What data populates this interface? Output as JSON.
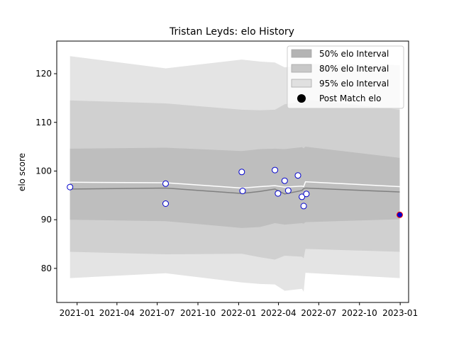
{
  "chart_data": {
    "type": "scatter",
    "title": "Tristan Leyds: elo History",
    "xlabel": "",
    "ylabel": "elo score",
    "x_axis": {
      "type": "date",
      "range": [
        "2020-11-16",
        "2023-01-20"
      ],
      "ticks": [
        "2021-01",
        "2021-04",
        "2021-07",
        "2021-10",
        "2022-01",
        "2022-04",
        "2022-07",
        "2022-10",
        "2023-01"
      ]
    },
    "y_axis": {
      "range": [
        73.0,
        126.7
      ],
      "ticks": [
        80,
        90,
        100,
        110,
        120
      ]
    },
    "grid": false,
    "legend": {
      "position": "top-right",
      "entries": [
        "50% elo Interval",
        "80% elo Interval",
        "95% elo Interval",
        "Post Match elo"
      ]
    },
    "colors": {
      "band95": "#e4e4e4",
      "band80": "#d0d0d0",
      "band50": "#bebebe",
      "mean_line": "#808080",
      "upper_line": "#ffffff",
      "marker_edge": "#0000cc",
      "marker_fill": "#ffffff",
      "final_marker_fill": "#0000cc",
      "final_marker_edge": "#ff0000"
    },
    "bands": {
      "dates": [
        "2020-12-16",
        "2021-07-20",
        "2022-01-08",
        "2022-02-18",
        "2022-03-24",
        "2022-04-15",
        "2022-05-24",
        "2022-05-28",
        "2022-06-01",
        "2022-12-31"
      ],
      "p97_5": [
        123.6,
        121.1,
        122.9,
        122.5,
        122.3,
        121.3,
        121.7,
        121.5,
        122.0,
        121.8
      ],
      "p90": [
        114.5,
        113.9,
        112.6,
        112.5,
        112.6,
        113.7,
        114.3,
        114.1,
        114.7,
        112.6
      ],
      "p75": [
        104.6,
        104.8,
        104.1,
        104.5,
        104.6,
        104.5,
        104.9,
        104.7,
        105.0,
        102.7
      ],
      "upper_line": [
        97.7,
        97.6,
        96.5,
        96.8,
        97.0,
        96.7,
        96.9,
        96.8,
        97.8,
        96.8
      ],
      "mean": [
        96.3,
        96.5,
        95.4,
        95.8,
        96.3,
        95.3,
        96.0,
        96.4,
        96.5,
        95.7
      ],
      "p25": [
        90.0,
        89.7,
        88.3,
        88.5,
        89.3,
        89.0,
        89.3,
        89.2,
        89.5,
        90.1
      ],
      "p10": [
        83.4,
        82.9,
        83.0,
        82.3,
        81.8,
        82.6,
        82.4,
        82.1,
        84.0,
        83.4
      ],
      "p2_5": [
        78.0,
        79.0,
        77.1,
        76.8,
        76.7,
        75.4,
        75.8,
        75.2,
        79.1,
        78.0
      ]
    },
    "points": [
      {
        "x": "2020-12-16",
        "y": 96.7
      },
      {
        "x": "2021-07-20",
        "y": 97.4
      },
      {
        "x": "2021-07-20",
        "y": 93.3
      },
      {
        "x": "2022-01-08",
        "y": 99.8
      },
      {
        "x": "2022-01-10",
        "y": 95.9
      },
      {
        "x": "2022-03-24",
        "y": 100.2
      },
      {
        "x": "2022-03-31",
        "y": 95.4
      },
      {
        "x": "2022-04-15",
        "y": 98.0
      },
      {
        "x": "2022-04-23",
        "y": 96.0
      },
      {
        "x": "2022-05-15",
        "y": 99.1
      },
      {
        "x": "2022-05-24",
        "y": 94.7
      },
      {
        "x": "2022-05-28",
        "y": 92.8
      },
      {
        "x": "2022-06-03",
        "y": 95.3
      }
    ],
    "final_point": {
      "x": "2022-12-31",
      "y": 91.0
    }
  }
}
